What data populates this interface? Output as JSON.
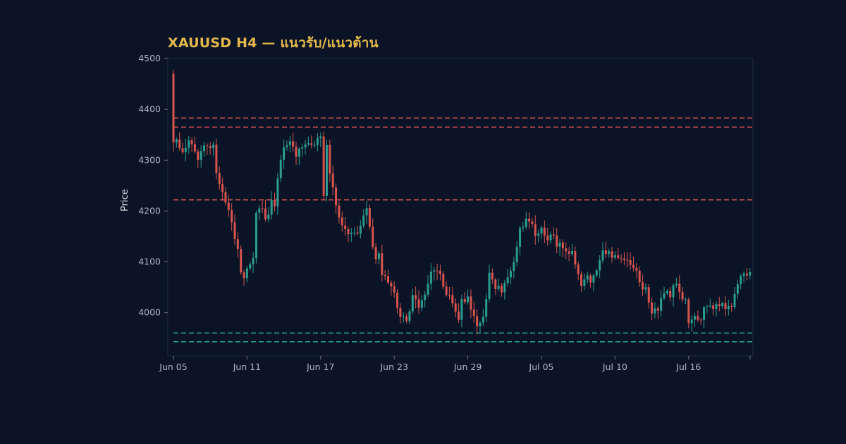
{
  "chart_data": {
    "type": "candlestick",
    "title": "XAUUSD H4 — แนวรับ/แนวต้าน",
    "ylabel": "Price",
    "xlabel": "",
    "ylim": [
      3915,
      4500
    ],
    "yticks": [
      4000,
      4100,
      4200,
      4300,
      4400,
      4500
    ],
    "xticks": [
      {
        "label": "Jun 05",
        "index": 0
      },
      {
        "label": "Jun 11",
        "index": 24
      },
      {
        "label": "Jun 17",
        "index": 48
      },
      {
        "label": "Jun 23",
        "index": 72
      },
      {
        "label": "Jun 29",
        "index": 96
      },
      {
        "label": "Jul 05",
        "index": 120
      },
      {
        "label": "Jul 10",
        "index": 144
      },
      {
        "label": "Jul 16",
        "index": 168
      }
    ],
    "resistance_levels": [
      4383,
      4365,
      4222
    ],
    "support_levels": [
      3960,
      3943
    ],
    "colors": {
      "up": "#2a9d8f",
      "down": "#d9534f",
      "resistance": "#d9534f",
      "support": "#2a9d8f",
      "title": "#e5b84b"
    },
    "close_keypoints": [
      [
        0,
        4470
      ],
      [
        1,
        4335
      ],
      [
        3,
        4320
      ],
      [
        5,
        4335
      ],
      [
        8,
        4305
      ],
      [
        10,
        4325
      ],
      [
        13,
        4335
      ],
      [
        14,
        4275
      ],
      [
        16,
        4240
      ],
      [
        17,
        4220
      ],
      [
        19,
        4180
      ],
      [
        20,
        4150
      ],
      [
        21,
        4130
      ],
      [
        22,
        4080
      ],
      [
        23,
        4060
      ],
      [
        24,
        4090
      ],
      [
        26,
        4100
      ],
      [
        27,
        4200
      ],
      [
        28,
        4210
      ],
      [
        29,
        4205
      ],
      [
        30,
        4190
      ],
      [
        31,
        4200
      ],
      [
        32,
        4215
      ],
      [
        33,
        4210
      ],
      [
        34,
        4270
      ],
      [
        36,
        4320
      ],
      [
        38,
        4345
      ],
      [
        40,
        4310
      ],
      [
        42,
        4330
      ],
      [
        44,
        4340
      ],
      [
        46,
        4330
      ],
      [
        48,
        4345
      ],
      [
        49,
        4230
      ],
      [
        50,
        4325
      ],
      [
        51,
        4270
      ],
      [
        53,
        4210
      ],
      [
        55,
        4170
      ],
      [
        57,
        4160
      ],
      [
        59,
        4150
      ],
      [
        60,
        4155
      ],
      [
        61,
        4170
      ],
      [
        62,
        4195
      ],
      [
        63,
        4205
      ],
      [
        64,
        4175
      ],
      [
        65,
        4130
      ],
      [
        66,
        4100
      ],
      [
        67,
        4120
      ],
      [
        68,
        4080
      ],
      [
        70,
        4060
      ],
      [
        72,
        4040
      ],
      [
        73,
        4005
      ],
      [
        75,
        3985
      ],
      [
        77,
        3995
      ],
      [
        78,
        4040
      ],
      [
        80,
        4005
      ],
      [
        82,
        4040
      ],
      [
        84,
        4075
      ],
      [
        86,
        4085
      ],
      [
        88,
        4055
      ],
      [
        90,
        4030
      ],
      [
        92,
        4005
      ],
      [
        93,
        3990
      ],
      [
        94,
        4030
      ],
      [
        96,
        4025
      ],
      [
        98,
        4000
      ],
      [
        99,
        3975
      ],
      [
        101,
        3990
      ],
      [
        103,
        4080
      ],
      [
        105,
        4050
      ],
      [
        107,
        4045
      ],
      [
        109,
        4070
      ],
      [
        111,
        4100
      ],
      [
        113,
        4160
      ],
      [
        115,
        4180
      ],
      [
        117,
        4175
      ],
      [
        118,
        4150
      ],
      [
        120,
        4165
      ],
      [
        122,
        4150
      ],
      [
        124,
        4145
      ],
      [
        126,
        4130
      ],
      [
        128,
        4115
      ],
      [
        130,
        4115
      ],
      [
        131,
        4090
      ],
      [
        133,
        4045
      ],
      [
        135,
        4075
      ],
      [
        136,
        4065
      ],
      [
        138,
        4090
      ],
      [
        140,
        4115
      ],
      [
        142,
        4120
      ],
      [
        144,
        4110
      ],
      [
        146,
        4105
      ],
      [
        148,
        4110
      ],
      [
        150,
        4090
      ],
      [
        152,
        4060
      ],
      [
        154,
        4045
      ],
      [
        156,
        4000
      ],
      [
        158,
        4010
      ],
      [
        160,
        4040
      ],
      [
        162,
        4030
      ],
      [
        163,
        4050
      ],
      [
        164,
        4050
      ],
      [
        166,
        4030
      ],
      [
        167,
        4020
      ],
      [
        168,
        3975
      ],
      [
        170,
        3995
      ],
      [
        172,
        3990
      ],
      [
        174,
        4020
      ],
      [
        176,
        4010
      ],
      [
        178,
        4020
      ],
      [
        180,
        4010
      ],
      [
        182,
        4010
      ],
      [
        184,
        4060
      ],
      [
        186,
        4075
      ],
      [
        188,
        4080
      ]
    ]
  }
}
